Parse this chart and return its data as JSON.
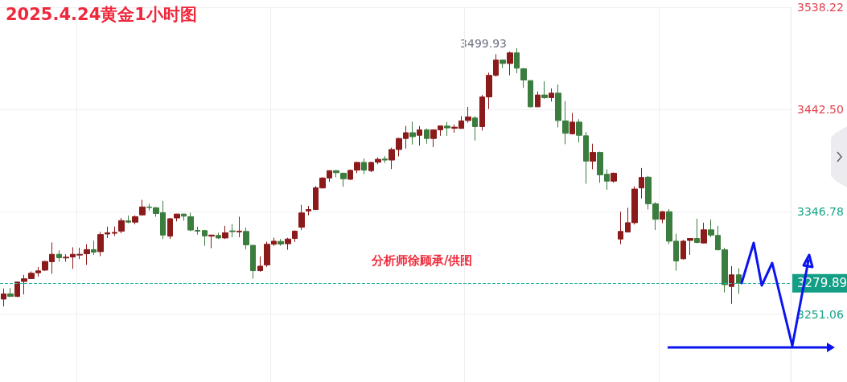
{
  "chart_data": {
    "type": "candlestick",
    "title": "2025.4.24黄金1小时图",
    "categories": [
      null,
      null,
      null,
      null,
      null,
      null,
      null,
      null,
      null,
      null,
      null,
      null,
      null,
      null,
      null,
      null,
      null,
      null,
      null,
      null,
      null,
      null,
      null,
      null,
      null,
      null,
      null,
      null,
      null,
      null,
      null,
      null,
      null,
      null,
      null,
      null,
      null,
      null,
      null,
      null,
      null,
      null,
      null,
      null,
      null,
      null,
      null,
      null,
      null,
      null,
      null,
      null,
      null,
      null,
      null,
      null,
      null,
      null,
      null,
      null,
      null,
      null,
      null,
      null,
      null,
      null,
      null,
      null,
      null,
      null,
      null,
      null,
      null,
      null,
      null,
      null,
      null,
      null,
      null,
      null,
      null,
      null,
      null,
      null,
      null,
      null,
      null,
      null,
      null,
      null,
      null,
      null,
      null,
      null,
      null,
      null,
      null,
      null,
      null,
      null,
      null,
      null,
      null,
      null,
      null,
      null,
      null,
      null,
      null,
      null,
      null,
      null,
      null,
      null
    ],
    "ohlc": [
      [
        3265.1,
        3275.0,
        3258.2,
        3270.0
      ],
      [
        3270.0,
        3275.4,
        3267.1,
        3267.6
      ],
      [
        3267.6,
        3281.6,
        3266.8,
        3281.1
      ],
      [
        3281.6,
        3287.8,
        3269.5,
        3284.1
      ],
      [
        3284.3,
        3291.0,
        3283.8,
        3289.3
      ],
      [
        3289.7,
        3295.2,
        3286.1,
        3291.5
      ],
      [
        3292.2,
        3300.8,
        3291.5,
        3300.3
      ],
      [
        3300.1,
        3318.1,
        3288.8,
        3307.0
      ],
      [
        3307.0,
        3310.7,
        3300.1,
        3303.8
      ],
      [
        3303.6,
        3307.0,
        3300.1,
        3304.3
      ],
      [
        3304.5,
        3313.6,
        3293.4,
        3307.0
      ],
      [
        3306.3,
        3313.2,
        3302.6,
        3307.0
      ],
      [
        3307.5,
        3316.4,
        3297.1,
        3311.4
      ],
      [
        3311.4,
        3319.8,
        3306.3,
        3309.0
      ],
      [
        3309.5,
        3328.0,
        3305.3,
        3325.5
      ],
      [
        3326.0,
        3332.9,
        3322.3,
        3327.2
      ],
      [
        3326.7,
        3332.9,
        3324.2,
        3327.5
      ],
      [
        3328.7,
        3341.0,
        3326.7,
        3338.5
      ],
      [
        3338.3,
        3343.2,
        3336.1,
        3337.1
      ],
      [
        3337.1,
        3343.5,
        3335.1,
        3342.2
      ],
      [
        3343.9,
        3358.0,
        3343.2,
        3351.3
      ],
      [
        3351.3,
        3354.3,
        3348.1,
        3350.8
      ],
      [
        3350.6,
        3351.3,
        3342.2,
        3345.2
      ],
      [
        3345.9,
        3357.0,
        3321.3,
        3325.0
      ],
      [
        3324.0,
        3341.0,
        3321.3,
        3340.3
      ],
      [
        3341.0,
        3344.9,
        3337.8,
        3344.7
      ],
      [
        3344.7,
        3344.9,
        3338.5,
        3342.7
      ],
      [
        3342.2,
        3345.9,
        3328.7,
        3329.7
      ],
      [
        3329.4,
        3332.9,
        3325.5,
        3328.7
      ],
      [
        3329.2,
        3329.9,
        3314.9,
        3324.2
      ],
      [
        3324.0,
        3325.5,
        3312.7,
        3325.0
      ],
      [
        3324.7,
        3327.2,
        3321.3,
        3322.3
      ],
      [
        3322.3,
        3333.6,
        3321.3,
        3327.2
      ],
      [
        3328.9,
        3335.3,
        3323.0,
        3328.2
      ],
      [
        3328.0,
        3342.2,
        3323.0,
        3328.7
      ],
      [
        3328.4,
        3332.1,
        3311.9,
        3315.9
      ],
      [
        3315.4,
        3315.4,
        3284.1,
        3291.7
      ],
      [
        3291.7,
        3305.0,
        3290.7,
        3295.9
      ],
      [
        3297.1,
        3318.8,
        3295.2,
        3316.4
      ],
      [
        3316.4,
        3322.5,
        3314.9,
        3319.3
      ],
      [
        3319.1,
        3321.3,
        3314.9,
        3316.6
      ],
      [
        3316.9,
        3322.5,
        3311.2,
        3321.3
      ],
      [
        3321.8,
        3329.4,
        3318.6,
        3328.7
      ],
      [
        3332.4,
        3353.3,
        3329.7,
        3345.7
      ],
      [
        3347.6,
        3352.3,
        3343.5,
        3348.9
      ],
      [
        3348.9,
        3370.8,
        3348.4,
        3369.3
      ],
      [
        3369.1,
        3379.2,
        3368.6,
        3378.4
      ],
      [
        3378.4,
        3385.3,
        3374.8,
        3385.3
      ],
      [
        3385.3,
        3385.8,
        3379.2,
        3383.4
      ],
      [
        3382.9,
        3383.4,
        3370.3,
        3377.7
      ],
      [
        3377.2,
        3386.3,
        3376.7,
        3385.6
      ],
      [
        3385.8,
        3393.7,
        3382.9,
        3393.0
      ],
      [
        3393.0,
        3396.7,
        3382.1,
        3385.8
      ],
      [
        3385.3,
        3393.7,
        3383.9,
        3393.0
      ],
      [
        3393.2,
        3397.7,
        3391.3,
        3395.9
      ],
      [
        3396.2,
        3398.9,
        3392.5,
        3395.2
      ],
      [
        3395.2,
        3406.8,
        3386.8,
        3405.1
      ],
      [
        3405.1,
        3416.2,
        3398.6,
        3415.4
      ],
      [
        3415.4,
        3427.2,
        3406.0,
        3420.8
      ],
      [
        3420.8,
        3431.2,
        3409.7,
        3417.1
      ],
      [
        3418.4,
        3427.0,
        3408.7,
        3423.5
      ],
      [
        3423.5,
        3424.8,
        3410.5,
        3415.4
      ],
      [
        3415.4,
        3423.5,
        3407.3,
        3423.5
      ],
      [
        3423.5,
        3427.2,
        3417.9,
        3427.2
      ],
      [
        3427.0,
        3430.9,
        3417.9,
        3425.3
      ],
      [
        3425.0,
        3428.5,
        3420.8,
        3426.0
      ],
      [
        3424.8,
        3436.3,
        3424.8,
        3431.9
      ],
      [
        3432.2,
        3445.0,
        3430.2,
        3435.6
      ],
      [
        3434.6,
        3436.3,
        3413.4,
        3426.5
      ],
      [
        3426.5,
        3456.1,
        3422.8,
        3454.3
      ],
      [
        3454.3,
        3477.0,
        3443.0,
        3474.5
      ],
      [
        3474.5,
        3494.3,
        3473.3,
        3488.8
      ],
      [
        3488.8,
        3488.8,
        3481.2,
        3485.6
      ],
      [
        3485.6,
        3496.7,
        3474.5,
        3495.5
      ],
      [
        3495.5,
        3499.93,
        3476.5,
        3481.2
      ],
      [
        3480.7,
        3481.4,
        3462.7,
        3470.1
      ],
      [
        3469.6,
        3469.6,
        3444.5,
        3445.0
      ],
      [
        3445.0,
        3459.3,
        3445.0,
        3456.1
      ],
      [
        3456.1,
        3468.9,
        3452.4,
        3453.6
      ],
      [
        3453.6,
        3462.2,
        3449.9,
        3457.8
      ],
      [
        3457.8,
        3465.9,
        3425.8,
        3432.2
      ],
      [
        3431.9,
        3450.4,
        3410.0,
        3420.3
      ],
      [
        3419.8,
        3439.3,
        3419.1,
        3430.7
      ],
      [
        3430.7,
        3433.4,
        3411.7,
        3418.4
      ],
      [
        3417.9,
        3421.6,
        3373.0,
        3394.2
      ],
      [
        3394.2,
        3410.5,
        3386.6,
        3402.3
      ],
      [
        3402.3,
        3403.1,
        3374.0,
        3381.4
      ],
      [
        3381.9,
        3386.6,
        3367.4,
        3375.5
      ],
      [
        3375.5,
        3383.4,
        3374.0,
        3382.9
      ],
      [
        3321.3,
        3346.9,
        3316.4,
        3328.4
      ],
      [
        3327.9,
        3350.6,
        3327.4,
        3336.6
      ],
      [
        3336.6,
        3370.6,
        3334.8,
        3368.1
      ],
      [
        3369.1,
        3387.8,
        3359.2,
        3378.9
      ],
      [
        3379.2,
        3380.4,
        3348.9,
        3354.3
      ],
      [
        3354.3,
        3355.8,
        3329.7,
        3339.8
      ],
      [
        3339.8,
        3347.6,
        3336.1,
        3346.9
      ],
      [
        3346.9,
        3349.4,
        3316.4,
        3319.3
      ],
      [
        3319.3,
        3326.2,
        3291.7,
        3300.8
      ],
      [
        3302.8,
        3320.5,
        3302.0,
        3319.3
      ],
      [
        3320.0,
        3321.8,
        3306.5,
        3321.8
      ],
      [
        3321.8,
        3340.3,
        3317.3,
        3318.1
      ],
      [
        3317.6,
        3336.6,
        3317.3,
        3329.9
      ],
      [
        3329.9,
        3339.5,
        3323.0,
        3325.0
      ],
      [
        3324.7,
        3333.6,
        3310.7,
        3311.2
      ],
      [
        3311.2,
        3313.1,
        3271.3,
        3278.6
      ],
      [
        3276.9,
        3295.9,
        3260.7,
        3287.8
      ],
      [
        3287.8,
        3293.9,
        3270.0,
        3279.89
      ],
      null,
      null,
      null,
      null,
      null,
      null,
      null
    ],
    "colors": [
      "#8b1a1a",
      "#3b7d3e",
      "#8b1a1a",
      "#8b1a1a",
      "#8b1a1a",
      "#8b1a1a",
      "#8b1a1a",
      "#8b1a1a",
      "#3b7d3e",
      "#8b1a1a",
      "#8b1a1a",
      "#8b1a1a",
      "#8b1a1a",
      "#3b7d3e",
      "#8b1a1a",
      "#8b1a1a",
      "#8b1a1a",
      "#8b1a1a",
      "#3b7d3e",
      "#8b1a1a",
      "#8b1a1a",
      "#3b7d3e",
      "#3b7d3e",
      "#3b7d3e",
      "#8b1a1a",
      "#8b1a1a",
      "#3b7d3e",
      "#3b7d3e",
      "#3b7d3e",
      "#3b7d3e",
      "#8b1a1a",
      "#3b7d3e",
      "#8b1a1a",
      "#3b7d3e",
      "#8b1a1a",
      "#3b7d3e",
      "#3b7d3e",
      "#8b1a1a",
      "#8b1a1a",
      "#8b1a1a",
      "#3b7d3e",
      "#8b1a1a",
      "#8b1a1a",
      "#8b1a1a",
      "#8b1a1a",
      "#8b1a1a",
      "#8b1a1a",
      "#8b1a1a",
      "#3b7d3e",
      "#3b7d3e",
      "#8b1a1a",
      "#8b1a1a",
      "#3b7d3e",
      "#8b1a1a",
      "#8b1a1a",
      "#3b7d3e",
      "#8b1a1a",
      "#8b1a1a",
      "#8b1a1a",
      "#3b7d3e",
      "#8b1a1a",
      "#3b7d3e",
      "#8b1a1a",
      "#8b1a1a",
      "#3b7d3e",
      "#8b1a1a",
      "#8b1a1a",
      "#8b1a1a",
      "#3b7d3e",
      "#8b1a1a",
      "#8b1a1a",
      "#8b1a1a",
      "#3b7d3e",
      "#8b1a1a",
      "#3b7d3e",
      "#3b7d3e",
      "#3b7d3e",
      "#8b1a1a",
      "#3b7d3e",
      "#8b1a1a",
      "#3b7d3e",
      "#3b7d3e",
      "#8b1a1a",
      "#3b7d3e",
      "#3b7d3e",
      "#8b1a1a",
      "#3b7d3e",
      "#3b7d3e",
      "#8b1a1a",
      "#8b1a1a",
      "#8b1a1a",
      "#8b1a1a",
      "#8b1a1a",
      "#3b7d3e",
      "#3b7d3e",
      "#8b1a1a",
      "#3b7d3e",
      "#3b7d3e",
      "#8b1a1a",
      "#8b1a1a",
      "#3b7d3e",
      "#8b1a1a",
      "#3b7d3e",
      "#3b7d3e",
      "#3b7d3e",
      "#8b1a1a",
      "#3b7d3e",
      null,
      null,
      null,
      null,
      null,
      null,
      null
    ],
    "ylim": [
      3187.5,
      3538.22
    ],
    "yticks": [
      3251.06,
      3346.78,
      {
        "value": 3442.5,
        "label": "3442.50"
      },
      3538.22
    ],
    "grid": true,
    "tick_labels": "y",
    "ref_lines": [
      {
        "axis": "y",
        "value": 3279.89,
        "label": "3279.89",
        "color": "#26b5a0",
        "line_style": "dashed"
      }
    ],
    "annotations": [
      "3499.93",
      "分析师徐顾承/供图"
    ]
  }
}
